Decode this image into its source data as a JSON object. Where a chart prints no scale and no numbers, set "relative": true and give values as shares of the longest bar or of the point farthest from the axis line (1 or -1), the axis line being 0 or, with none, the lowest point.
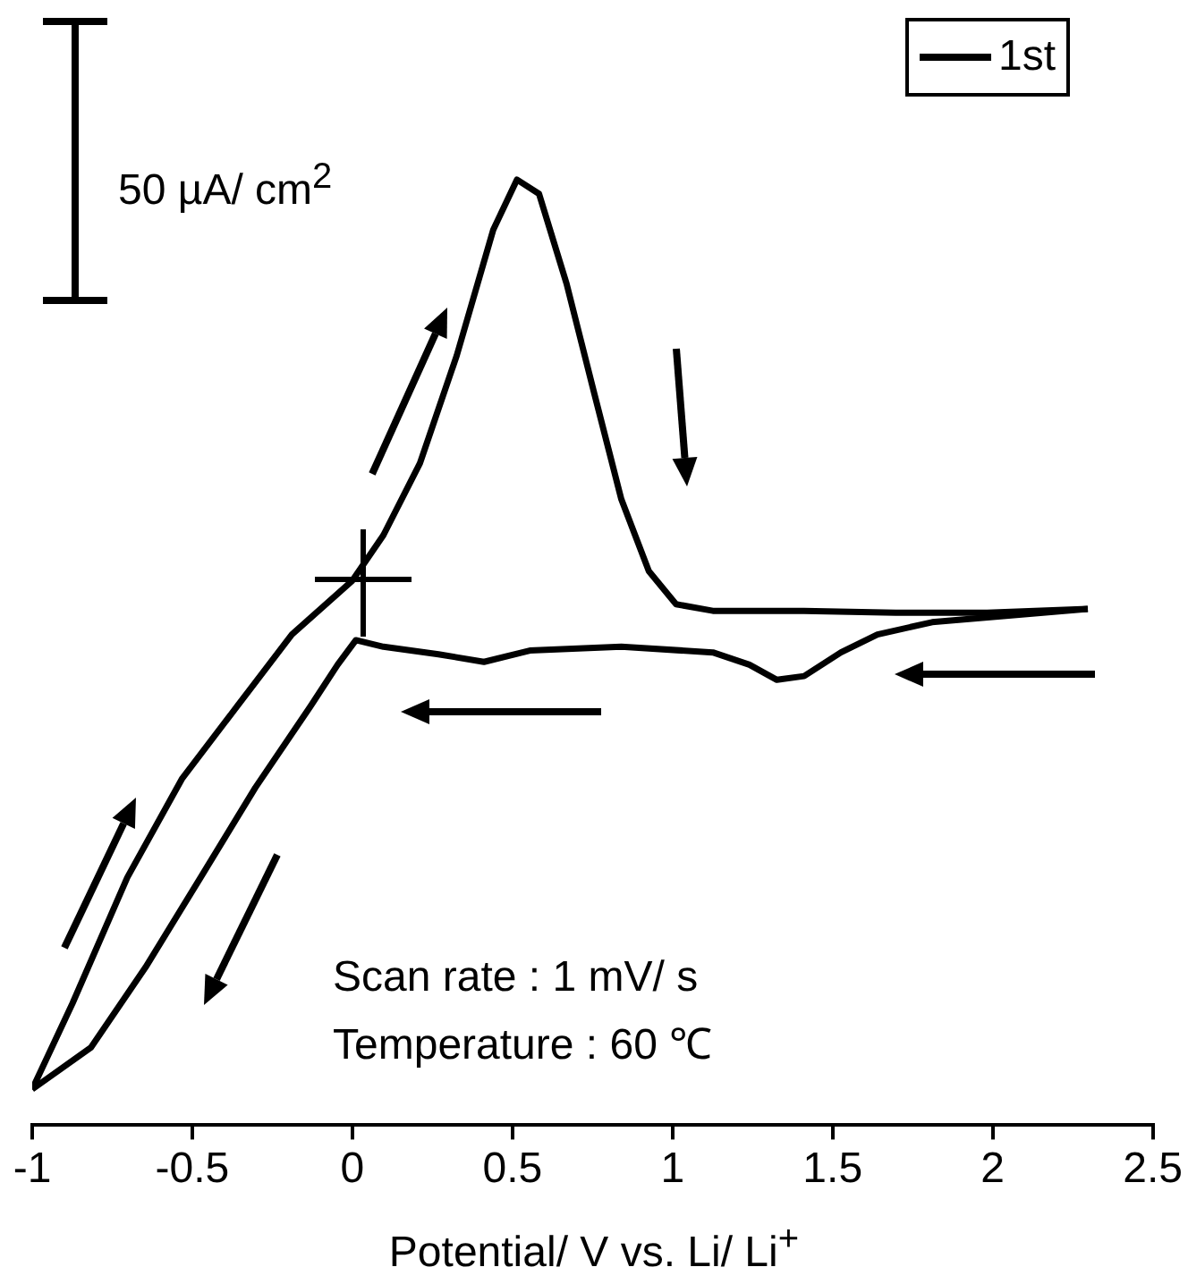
{
  "chart_data": {
    "type": "line",
    "relative": true,
    "xlabel": "Potential/ V vs. Li/ Li$^{+}$",
    "xlim": [
      -1,
      2.5
    ],
    "xticks": [
      -1,
      -0.5,
      0,
      0.5,
      1,
      1.5,
      2,
      2.5
    ],
    "legend": "top right",
    "grid": false,
    "marker": "none",
    "line_style": "solid",
    "annotations": [
      "50 µA/ cm$^{2}$",
      "Scan rate : 1 mV/ s",
      "Temperature : 60 ℃"
    ],
    "series": [
      {
        "name": "1st",
        "color": "#000000",
        "x": [
          -1,
          -0.874,
          -0.703,
          -0.531,
          -0.36,
          -0.189,
          0,
          0.097,
          0.211,
          0.326,
          0.44,
          0.514,
          0.583,
          0.669,
          0.754,
          0.84,
          0.926,
          1.011,
          1.126,
          1.411,
          1.697,
          1.983,
          2.297
        ],
        "values": [
          0.038,
          0.129,
          0.262,
          0.367,
          0.443,
          0.519,
          0.576,
          0.624,
          0.7,
          0.814,
          0.947,
          1,
          0.985,
          0.89,
          0.776,
          0.662,
          0.586,
          0.551,
          0.544,
          0.544,
          0.542,
          0.542,
          0.546
        ]
      },
      {
        "color": "#000000",
        "x": [
          -1,
          -0.817,
          -0.646,
          -0.474,
          -0.303,
          -0.131,
          -0.046,
          0.011,
          0.097,
          0.269,
          0.411,
          0.554,
          0.84,
          1.126,
          1.24,
          1.326,
          1.411,
          1.526,
          1.64,
          1.811,
          2.297
        ],
        "values": [
          0.038,
          0.082,
          0.167,
          0.262,
          0.357,
          0.443,
          0.487,
          0.513,
          0.506,
          0.498,
          0.49,
          0.502,
          0.506,
          0.5,
          0.487,
          0.471,
          0.475,
          0.5,
          0.519,
          0.532,
          0.546
        ]
      }
    ]
  }
}
